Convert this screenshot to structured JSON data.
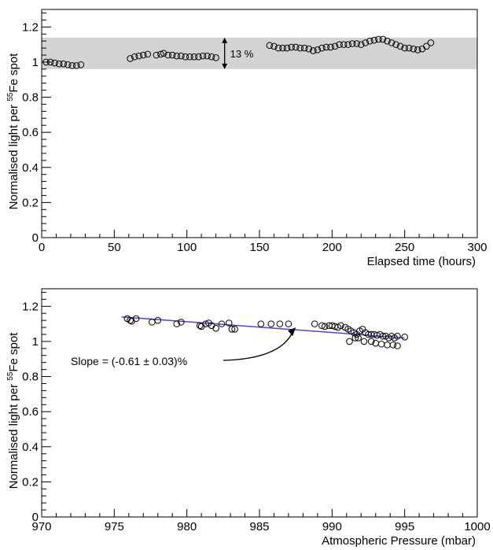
{
  "chart_data": [
    {
      "type": "scatter",
      "title": "",
      "xlabel": "Elapsed time (hours)",
      "ylabel": {
        "main": "Normalised light per ",
        "sup": "55",
        "tail": "Fe spot"
      },
      "xlim": [
        0,
        300
      ],
      "ylim": [
        0,
        1.3
      ],
      "x_ticks": [
        0,
        50,
        100,
        150,
        200,
        250,
        300
      ],
      "x_tick_labels": [
        "0",
        "50",
        "100",
        "150",
        "200",
        "250",
        "300"
      ],
      "y_ticks": [
        0,
        0.2,
        0.4,
        0.6,
        0.8,
        1,
        1.2
      ],
      "y_tick_labels": [
        "0",
        "0.2",
        "0.4",
        "0.6",
        "0.8",
        "1",
        "1.2"
      ],
      "grid": false,
      "band": {
        "y_low": 0.96,
        "y_high": 1.14,
        "color": "#d3d3d3"
      },
      "annotation": {
        "text": "13 %",
        "x": 126,
        "y_low": 0.96,
        "y_high": 1.14
      },
      "points": [
        [
          3,
          1.0
        ],
        [
          6,
          1.0
        ],
        [
          9,
          0.995
        ],
        [
          12,
          0.99
        ],
        [
          15,
          0.99
        ],
        [
          18,
          0.985
        ],
        [
          21,
          0.98
        ],
        [
          24,
          0.98
        ],
        [
          27,
          0.985
        ],
        [
          61,
          1.02
        ],
        [
          64,
          1.03
        ],
        [
          67,
          1.035
        ],
        [
          70,
          1.04
        ],
        [
          73,
          1.045
        ],
        [
          79,
          1.04
        ],
        [
          82,
          1.045
        ],
        [
          84,
          1.05
        ],
        [
          87,
          1.04
        ],
        [
          90,
          1.04
        ],
        [
          93,
          1.035
        ],
        [
          96,
          1.035
        ],
        [
          99,
          1.03
        ],
        [
          102,
          1.03
        ],
        [
          105,
          1.03
        ],
        [
          108,
          1.03
        ],
        [
          111,
          1.035
        ],
        [
          114,
          1.035
        ],
        [
          117,
          1.03
        ],
        [
          120,
          1.025
        ],
        [
          157,
          1.095
        ],
        [
          160,
          1.09
        ],
        [
          163,
          1.08
        ],
        [
          166,
          1.08
        ],
        [
          169,
          1.08
        ],
        [
          172,
          1.085
        ],
        [
          175,
          1.085
        ],
        [
          178,
          1.08
        ],
        [
          181,
          1.08
        ],
        [
          184,
          1.075
        ],
        [
          187,
          1.065
        ],
        [
          190,
          1.07
        ],
        [
          193,
          1.08
        ],
        [
          196,
          1.085
        ],
        [
          199,
          1.085
        ],
        [
          202,
          1.09
        ],
        [
          205,
          1.1
        ],
        [
          208,
          1.1
        ],
        [
          211,
          1.1
        ],
        [
          214,
          1.105
        ],
        [
          217,
          1.105
        ],
        [
          220,
          1.1
        ],
        [
          223,
          1.11
        ],
        [
          226,
          1.12
        ],
        [
          229,
          1.125
        ],
        [
          232,
          1.13
        ],
        [
          235,
          1.13
        ],
        [
          238,
          1.12
        ],
        [
          241,
          1.11
        ],
        [
          244,
          1.1
        ],
        [
          247,
          1.09
        ],
        [
          250,
          1.08
        ],
        [
          253,
          1.08
        ],
        [
          256,
          1.075
        ],
        [
          259,
          1.07
        ],
        [
          262,
          1.075
        ],
        [
          265,
          1.09
        ],
        [
          268,
          1.11
        ]
      ]
    },
    {
      "type": "scatter",
      "title": "",
      "xlabel": "Atmospheric Pressure (mbar)",
      "ylabel": {
        "main": "Normalised light per ",
        "sup": "55",
        "tail": "Fe spot"
      },
      "xlim": [
        970,
        1000
      ],
      "ylim": [
        0,
        1.3
      ],
      "x_ticks": [
        970,
        975,
        980,
        985,
        990,
        995,
        1000
      ],
      "x_tick_labels": [
        "970",
        "975",
        "980",
        "985",
        "990",
        "995",
        "1000"
      ],
      "y_ticks": [
        0,
        0.2,
        0.4,
        0.6,
        0.8,
        1,
        1.2
      ],
      "y_tick_labels": [
        "0",
        "0.2",
        "0.4",
        "0.6",
        "0.8",
        "1",
        "1.2"
      ],
      "grid": false,
      "fit_line": {
        "x": [
          975.5,
          995
        ],
        "y": [
          1.14,
          1.02
        ],
        "color": "#4a4ad0"
      },
      "annotation": {
        "text": "Slope = (-0.61 ± 0.03)%",
        "arrow_to_x": 987.5,
        "arrow_to_y": 1.08
      },
      "points": [
        [
          975.9,
          1.13
        ],
        [
          976.1,
          1.12
        ],
        [
          976.2,
          1.115
        ],
        [
          976.5,
          1.13
        ],
        [
          977.6,
          1.11
        ],
        [
          978.0,
          1.12
        ],
        [
          979.3,
          1.1
        ],
        [
          979.6,
          1.11
        ],
        [
          980.9,
          1.09
        ],
        [
          981.0,
          1.085
        ],
        [
          981.3,
          1.1
        ],
        [
          981.5,
          1.105
        ],
        [
          981.7,
          1.09
        ],
        [
          982.0,
          1.075
        ],
        [
          982.4,
          1.1
        ],
        [
          982.9,
          1.105
        ],
        [
          983.1,
          1.07
        ],
        [
          983.3,
          1.07
        ],
        [
          985.1,
          1.1
        ],
        [
          985.8,
          1.1
        ],
        [
          986.4,
          1.1
        ],
        [
          987.0,
          1.1
        ],
        [
          988.8,
          1.1
        ],
        [
          989.3,
          1.09
        ],
        [
          989.5,
          1.085
        ],
        [
          989.8,
          1.09
        ],
        [
          990.0,
          1.09
        ],
        [
          990.2,
          1.085
        ],
        [
          990.4,
          1.08
        ],
        [
          990.6,
          1.09
        ],
        [
          990.9,
          1.08
        ],
        [
          991.1,
          1.07
        ],
        [
          991.3,
          1.06
        ],
        [
          991.5,
          1.05
        ],
        [
          991.7,
          1.04
        ],
        [
          991.9,
          1.06
        ],
        [
          991.2,
          1.0
        ],
        [
          991.6,
          1.02
        ],
        [
          991.8,
          1.02
        ],
        [
          992.1,
          1.07
        ],
        [
          992.3,
          1.05
        ],
        [
          992.5,
          1.04
        ],
        [
          992.7,
          1.04
        ],
        [
          992.9,
          1.04
        ],
        [
          993.1,
          1.035
        ],
        [
          993.3,
          1.04
        ],
        [
          993.5,
          1.03
        ],
        [
          993.7,
          1.03
        ],
        [
          993.9,
          1.02
        ],
        [
          994.1,
          1.03
        ],
        [
          994.3,
          1.02
        ],
        [
          994.5,
          1.03
        ],
        [
          992.7,
          1.0
        ],
        [
          993.0,
          0.99
        ],
        [
          993.4,
          0.985
        ],
        [
          993.8,
          0.98
        ],
        [
          994.2,
          0.98
        ],
        [
          994.5,
          0.975
        ],
        [
          995.0,
          1.025
        ],
        [
          992.2,
          1.0
        ]
      ]
    }
  ]
}
